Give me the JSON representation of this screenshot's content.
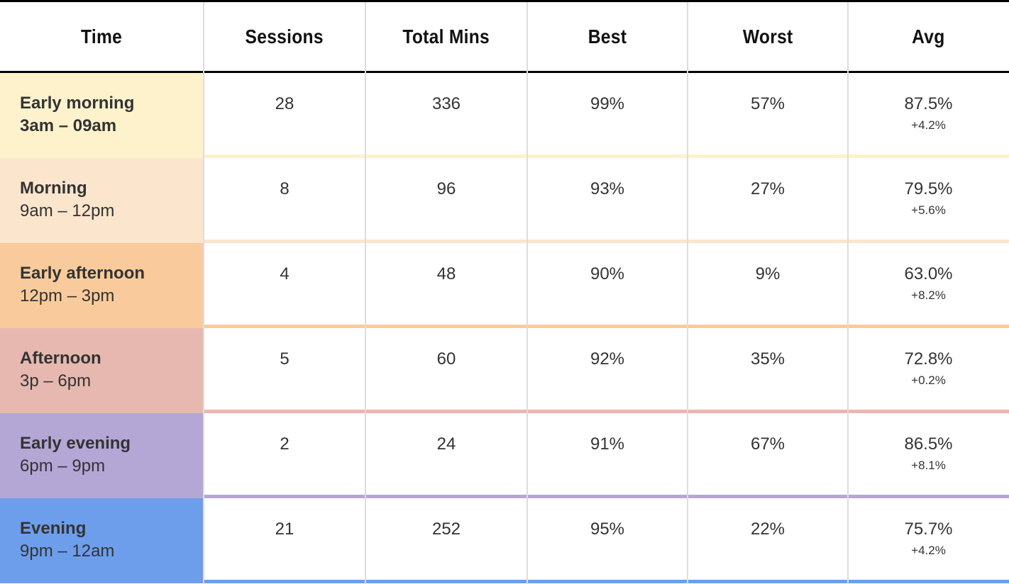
{
  "table": {
    "columns": [
      "Time",
      "Sessions",
      "Total Mins",
      "Best",
      "Worst",
      "Avg"
    ],
    "rows": [
      {
        "label": "Early morning",
        "range": "3am – 09am",
        "color": "#fef2cd",
        "cells": [
          "28",
          "336",
          "99%",
          "57%",
          "87.5%"
        ],
        "change": "+4.2%"
      },
      {
        "label": "Morning",
        "range": "9am – 12pm",
        "color": "#fce5cd",
        "cells": [
          "8",
          "96",
          "93%",
          "27%",
          "79.5%"
        ],
        "change": "+5.6%"
      },
      {
        "label": "Early afternoon",
        "range": "12pm – 3pm",
        "color": "#f9cb9c",
        "cells": [
          "4",
          "48",
          "90%",
          "9%",
          "63.0%"
        ],
        "change": "+8.2%"
      },
      {
        "label": "Afternoon",
        "range": "3p – 6pm",
        "color": "#e6b8af",
        "cells": [
          "5",
          "60",
          "92%",
          "35%",
          "72.8%"
        ],
        "change": "+0.2%"
      },
      {
        "label": "Early evening",
        "range": "6pm – 9pm",
        "color": "#b4a7d6",
        "cells": [
          "2",
          "24",
          "91%",
          "67%",
          "86.5%"
        ],
        "change": "+8.1%"
      },
      {
        "label": "Evening",
        "range": "9pm – 12am",
        "color": "#6d9eeb",
        "cells": [
          "21",
          "252",
          "95%",
          "22%",
          "75.7%"
        ],
        "change": "+4.2%"
      }
    ]
  }
}
